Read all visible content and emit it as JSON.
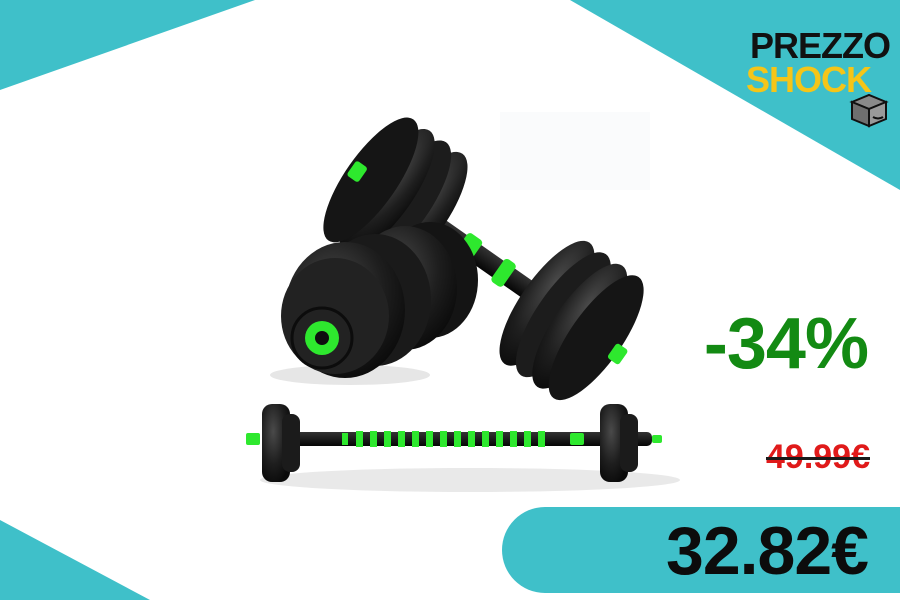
{
  "brand": {
    "name_line1": "PREZZO",
    "name_line2": "SHOCK",
    "icon": "box-icon",
    "colors": {
      "dark": "#111111",
      "accent": "#f5c518"
    }
  },
  "product": {
    "image": "dumbbell-barbell-set-image"
  },
  "offer": {
    "discount": "-34%",
    "old_price": "49.99€",
    "price": "32.82€"
  },
  "colors": {
    "teal": "#3fc0c9",
    "discount_green": "#138a13",
    "old_price_red": "#e01a1a",
    "product_green": "#2ee82e"
  }
}
